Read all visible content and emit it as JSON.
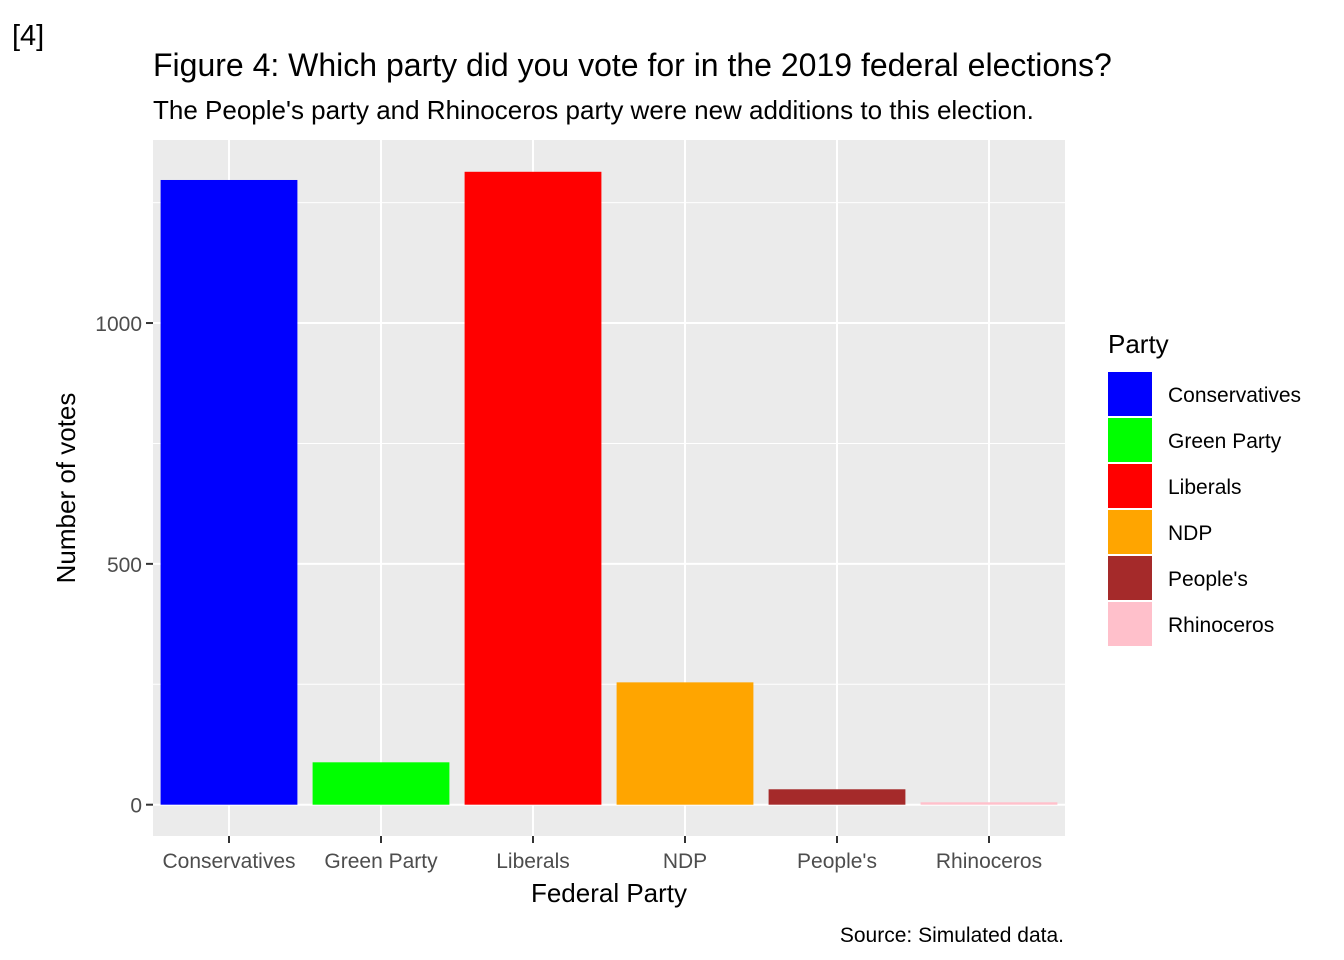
{
  "tag": "[4]",
  "chart_data": {
    "type": "bar",
    "title": "Figure 4: Which party did you vote for in the 2019 federal elections?",
    "subtitle": "The People's party and Rhinoceros party were new additions to this election.",
    "caption": "Source: Simulated data.",
    "xlabel": "Federal Party",
    "ylabel": "Number of votes",
    "categories": [
      "Conservatives",
      "Green Party",
      "Liberals",
      "NDP",
      "People's",
      "Rhinoceros"
    ],
    "values": [
      1297,
      88,
      1314,
      254,
      32,
      5
    ],
    "colors": [
      "#0000ff",
      "#00ff00",
      "#ff0000",
      "#ffa500",
      "#a52a2a",
      "#ffc0cb"
    ],
    "ylim": [
      -65,
      1380
    ],
    "yticks": [
      0,
      500,
      1000
    ],
    "ytick_labels": [
      "0",
      "500",
      "1000"
    ],
    "y_minor_ticks": [
      250,
      750,
      1250
    ],
    "grid": true,
    "legend": {
      "title": "Party",
      "position": "right",
      "items": [
        "Conservatives",
        "Green Party",
        "Liberals",
        "NDP",
        "People's",
        "Rhinoceros"
      ]
    }
  }
}
